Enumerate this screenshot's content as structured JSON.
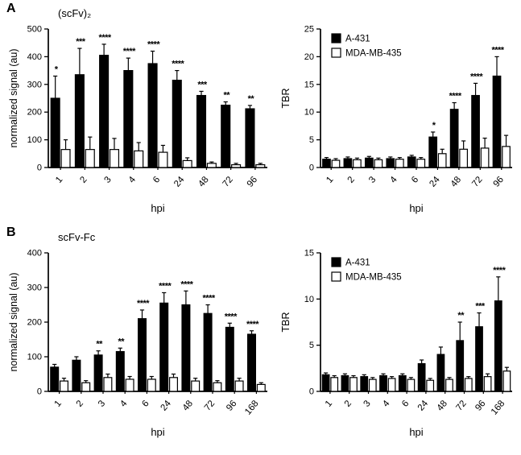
{
  "panels": [
    {
      "label": "A"
    },
    {
      "label": "B"
    }
  ],
  "chart_data": [
    {
      "type": "bar",
      "name": "scfv2-signal",
      "title": "(scFv)₂",
      "ylabel": "normalized signal (au)",
      "xlabel": "hpi",
      "ylim": [
        0,
        500
      ],
      "yticks": [
        0,
        100,
        200,
        300,
        400,
        500
      ],
      "categories": [
        "1",
        "2",
        "3",
        "4",
        "6",
        "24",
        "48",
        "72",
        "96"
      ],
      "legend": false,
      "series": [
        {
          "name": "A-431",
          "color": "#000000",
          "values": [
            250,
            335,
            405,
            350,
            375,
            315,
            260,
            225,
            212
          ],
          "errors": [
            80,
            95,
            40,
            45,
            45,
            35,
            15,
            12,
            12
          ]
        },
        {
          "name": "MDA-MB-435",
          "color": "#ffffff",
          "values": [
            65,
            65,
            65,
            60,
            55,
            25,
            15,
            10,
            10
          ],
          "errors": [
            35,
            45,
            40,
            30,
            25,
            10,
            5,
            5,
            5
          ]
        }
      ],
      "significance": [
        "*",
        "***",
        "****",
        "****",
        "****",
        "****",
        "***",
        "**",
        "**"
      ]
    },
    {
      "type": "bar",
      "name": "scfv2-tbr",
      "title": "",
      "ylabel": "TBR",
      "xlabel": "hpi",
      "ylim": [
        0,
        25
      ],
      "yticks": [
        0,
        5,
        10,
        15,
        20,
        25
      ],
      "categories": [
        "1",
        "2",
        "3",
        "4",
        "6",
        "24",
        "48",
        "72",
        "96"
      ],
      "legend": true,
      "series": [
        {
          "name": "A-431",
          "color": "#000000",
          "values": [
            1.5,
            1.6,
            1.7,
            1.6,
            1.9,
            5.5,
            10.5,
            13,
            16.5
          ],
          "errors": [
            0.3,
            0.3,
            0.3,
            0.3,
            0.3,
            0.9,
            1.2,
            2.2,
            3.5
          ]
        },
        {
          "name": "MDA-MB-435",
          "color": "#ffffff",
          "values": [
            1.3,
            1.4,
            1.4,
            1.5,
            1.5,
            2.5,
            3.3,
            3.5,
            3.8
          ],
          "errors": [
            0.3,
            0.3,
            0.3,
            0.3,
            0.3,
            0.8,
            1.5,
            1.8,
            2.0
          ]
        }
      ],
      "significance": [
        "",
        "",
        "",
        "",
        "",
        "*",
        "****",
        "****",
        "****"
      ]
    },
    {
      "type": "bar",
      "name": "scfvfc-signal",
      "title": "scFv-Fc",
      "ylabel": "normalized signal (au)",
      "xlabel": "hpi",
      "ylim": [
        0,
        400
      ],
      "yticks": [
        0,
        100,
        200,
        300,
        400
      ],
      "categories": [
        "1",
        "2",
        "3",
        "4",
        "6",
        "24",
        "48",
        "72",
        "96",
        "168"
      ],
      "legend": false,
      "series": [
        {
          "name": "A-431",
          "color": "#000000",
          "values": [
            70,
            90,
            105,
            115,
            210,
            255,
            250,
            225,
            185,
            165
          ],
          "errors": [
            8,
            10,
            12,
            10,
            25,
            30,
            40,
            25,
            12,
            10
          ]
        },
        {
          "name": "MDA-MB-435",
          "color": "#ffffff",
          "values": [
            30,
            25,
            40,
            35,
            35,
            40,
            30,
            25,
            30,
            20
          ],
          "errors": [
            8,
            6,
            10,
            8,
            8,
            10,
            8,
            6,
            8,
            5
          ]
        }
      ],
      "significance": [
        "",
        "",
        "**",
        "**",
        "****",
        "****",
        "****",
        "****",
        "****",
        "****"
      ]
    },
    {
      "type": "bar",
      "name": "scfvfc-tbr",
      "title": "",
      "ylabel": "TBR",
      "xlabel": "hpi",
      "ylim": [
        0,
        15
      ],
      "yticks": [
        0,
        5,
        10,
        15
      ],
      "categories": [
        "1",
        "2",
        "3",
        "4",
        "6",
        "24",
        "48",
        "72",
        "96",
        "168"
      ],
      "legend": true,
      "series": [
        {
          "name": "A-431",
          "color": "#000000",
          "values": [
            1.8,
            1.7,
            1.6,
            1.7,
            1.7,
            3.0,
            4.0,
            5.5,
            7.0,
            9.8
          ],
          "errors": [
            0.2,
            0.2,
            0.2,
            0.2,
            0.2,
            0.4,
            0.8,
            2.0,
            1.5,
            2.6
          ]
        },
        {
          "name": "MDA-MB-435",
          "color": "#ffffff",
          "values": [
            1.5,
            1.5,
            1.3,
            1.4,
            1.3,
            1.2,
            1.3,
            1.4,
            1.6,
            2.2
          ],
          "errors": [
            0.2,
            0.2,
            0.2,
            0.2,
            0.2,
            0.2,
            0.2,
            0.2,
            0.3,
            0.4
          ]
        }
      ],
      "significance": [
        "",
        "",
        "",
        "",
        "",
        "",
        "",
        "**",
        "***",
        "****"
      ]
    }
  ]
}
